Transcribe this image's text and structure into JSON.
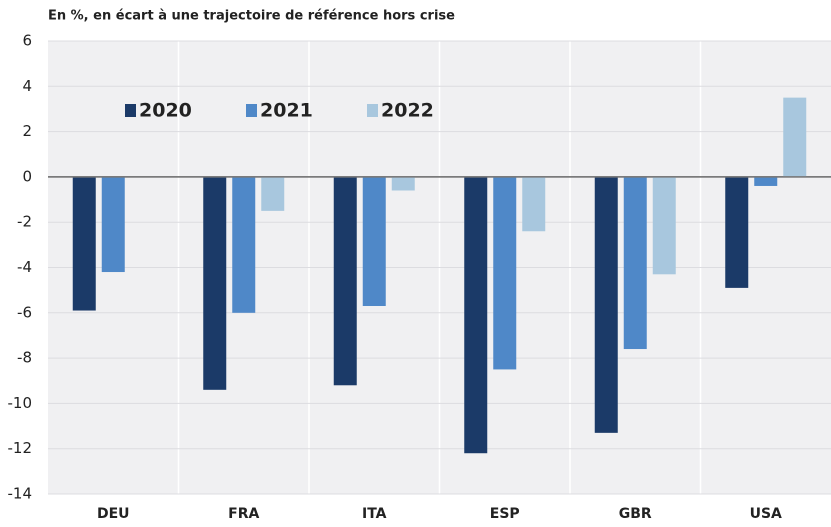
{
  "chart_data": {
    "type": "bar",
    "title": "En %, en écart à une trajectoire de référence hors crise",
    "categories": [
      "DEU",
      "FRA",
      "ITA",
      "ESP",
      "GBR",
      "USA"
    ],
    "series": [
      {
        "name": "2020",
        "color": "#1b3a68",
        "values": [
          -5.9,
          -9.4,
          -9.2,
          -12.2,
          -11.3,
          -4.9
        ]
      },
      {
        "name": "2021",
        "color": "#4f88c8",
        "values": [
          -4.2,
          -6.0,
          -5.7,
          -8.5,
          -7.6,
          -0.4
        ]
      },
      {
        "name": "2022",
        "color": "#a8c7de",
        "values": [
          null,
          -1.5,
          -0.6,
          -2.4,
          -4.3,
          3.5
        ]
      }
    ],
    "ylim": [
      -14,
      6
    ],
    "yticks": [
      -14,
      -12,
      -10,
      -8,
      -6,
      -4,
      -2,
      0,
      2,
      4,
      6
    ],
    "grid": true
  }
}
